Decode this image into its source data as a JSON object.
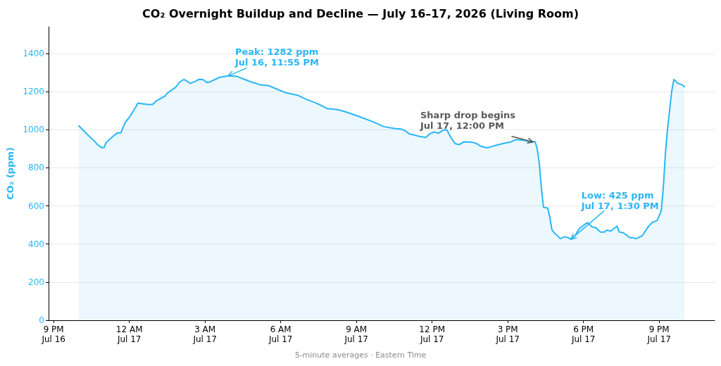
{
  "chart_data": {
    "type": "area",
    "title": "CO₂ Overnight Buildup and Decline — July 16–17, 2026 (Living Room)",
    "ylabel": "CO₂ (ppm)",
    "x": [
      "2026-07-16T22:00",
      "2026-07-16T22:20",
      "2026-07-16T22:35",
      "2026-07-16T22:45",
      "2026-07-16T22:55",
      "2026-07-16T23:00",
      "2026-07-16T23:05",
      "2026-07-16T23:20",
      "2026-07-16T23:30",
      "2026-07-16T23:40",
      "2026-07-16T23:50",
      "2026-07-17T00:00",
      "2026-07-17T00:15",
      "2026-07-17T00:20",
      "2026-07-17T00:45",
      "2026-07-17T00:55",
      "2026-07-17T01:05",
      "2026-07-17T01:25",
      "2026-07-17T01:30",
      "2026-07-17T01:40",
      "2026-07-17T01:50",
      "2026-07-17T02:00",
      "2026-07-17T02:10",
      "2026-07-17T02:25",
      "2026-07-17T02:40",
      "2026-07-17T02:45",
      "2026-07-17T02:55",
      "2026-07-17T03:05",
      "2026-07-17T03:10",
      "2026-07-17T03:35",
      "2026-07-17T03:55",
      "2026-07-17T04:15",
      "2026-07-17T04:35",
      "2026-07-17T04:50",
      "2026-07-17T05:05",
      "2026-07-17T05:10",
      "2026-07-17T05:30",
      "2026-07-17T05:50",
      "2026-07-17T06:10",
      "2026-07-17T06:40",
      "2026-07-17T07:00",
      "2026-07-17T07:25",
      "2026-07-17T07:40",
      "2026-07-17T07:50",
      "2026-07-17T08:15",
      "2026-07-17T08:35",
      "2026-07-17T09:05",
      "2026-07-17T09:40",
      "2026-07-17T10:05",
      "2026-07-17T10:30",
      "2026-07-17T10:45",
      "2026-07-17T10:55",
      "2026-07-17T11:05",
      "2026-07-17T11:30",
      "2026-07-17T11:45",
      "2026-07-17T11:55",
      "2026-07-17T12:05",
      "2026-07-17T12:15",
      "2026-07-17T12:25",
      "2026-07-17T12:35",
      "2026-07-17T12:45",
      "2026-07-17T12:55",
      "2026-07-17T13:05",
      "2026-07-17T13:15",
      "2026-07-17T13:35",
      "2026-07-17T13:45",
      "2026-07-17T13:55",
      "2026-07-17T14:10",
      "2026-07-17T14:20",
      "2026-07-17T14:30",
      "2026-07-17T14:50",
      "2026-07-17T15:05",
      "2026-07-17T15:20",
      "2026-07-17T15:40",
      "2026-07-17T15:55",
      "2026-07-17T16:05",
      "2026-07-17T16:10",
      "2026-07-17T16:15",
      "2026-07-17T16:20",
      "2026-07-17T16:25",
      "2026-07-17T16:35",
      "2026-07-17T16:40",
      "2026-07-17T16:45",
      "2026-07-17T16:50",
      "2026-07-17T16:55",
      "2026-07-17T17:05",
      "2026-07-17T17:15",
      "2026-07-17T17:25",
      "2026-07-17T17:30",
      "2026-07-17T17:40",
      "2026-07-17T17:50",
      "2026-07-17T18:05",
      "2026-07-17T18:10",
      "2026-07-17T18:20",
      "2026-07-17T18:30",
      "2026-07-17T18:40",
      "2026-07-17T18:50",
      "2026-07-17T18:55",
      "2026-07-17T19:05",
      "2026-07-17T19:20",
      "2026-07-17T19:25",
      "2026-07-17T19:35",
      "2026-07-17T19:50",
      "2026-07-17T20:00",
      "2026-07-17T20:05",
      "2026-07-17T20:15",
      "2026-07-17T20:20",
      "2026-07-17T20:35",
      "2026-07-17T20:45",
      "2026-07-17T20:55",
      "2026-07-17T21:05",
      "2026-07-17T21:10",
      "2026-07-17T21:15",
      "2026-07-17T21:20",
      "2026-07-17T21:30",
      "2026-07-17T21:35",
      "2026-07-17T21:45",
      "2026-07-17T21:55",
      "2026-07-17T22:00"
    ],
    "series": [
      {
        "color": "#29b6f6",
        "values": [
          1020,
          975,
          944,
          920,
          905,
          907,
          932,
          963,
          981,
          984,
          1037,
          1065,
          1117,
          1139,
          1132,
          1132,
          1152,
          1177,
          1191,
          1207,
          1222,
          1250,
          1264,
          1243,
          1256,
          1264,
          1263,
          1247,
          1249,
          1275,
          1282,
          1280,
          1263,
          1250,
          1241,
          1235,
          1232,
          1214,
          1195,
          1181,
          1160,
          1139,
          1123,
          1111,
          1105,
          1093,
          1070,
          1041,
          1016,
          1006,
          1004,
          996,
          979,
          965,
          959,
          979,
          988,
          981,
          996,
          1000,
          957,
          926,
          922,
          936,
          934,
          928,
          914,
          905,
          910,
          917,
          928,
          934,
          948,
          944,
          934,
          938,
          900,
          821,
          690,
          593,
          589,
          540,
          475,
          460,
          450,
          428,
          438,
          432,
          425,
          444,
          481,
          506,
          512,
          490,
          485,
          463,
          463,
          473,
          468,
          494,
          463,
          459,
          434,
          432,
          428,
          438,
          444,
          494,
          515,
          522,
          574,
          700,
          880,
          1006,
          1204,
          1263,
          1243,
          1235,
          1225
        ]
      }
    ],
    "xlim": [
      "2026-07-16T20:48",
      "2026-07-17T23:12"
    ],
    "xticks": [
      {
        "value": "2026-07-16T21:00",
        "label": "9 PM\nJul 16"
      },
      {
        "value": "2026-07-17T00:00",
        "label": "12 AM\nJul 17"
      },
      {
        "value": "2026-07-17T03:00",
        "label": "3 AM\nJul 17"
      },
      {
        "value": "2026-07-17T06:00",
        "label": "6 AM\nJul 17"
      },
      {
        "value": "2026-07-17T09:00",
        "label": "9 AM\nJul 17"
      },
      {
        "value": "2026-07-17T12:00",
        "label": "12 PM\nJul 17"
      },
      {
        "value": "2026-07-17T15:00",
        "label": "3 PM\nJul 17"
      },
      {
        "value": "2026-07-17T18:00",
        "label": "6 PM\nJul 17"
      },
      {
        "value": "2026-07-17T21:00",
        "label": "9 PM\nJul 17"
      }
    ],
    "ylim": [
      0,
      1540
    ],
    "yticks": [
      0,
      200,
      400,
      600,
      800,
      1000,
      1200,
      1400
    ],
    "grid": "y",
    "annotations": [
      {
        "text": "Peak: 1282 ppm\nJul 16, 11:55 PM",
        "x": "2026-07-17T03:55",
        "y": 1282
      },
      {
        "text": "Sharp drop begins\nJul 17, 12:00 PM",
        "x": "2026-07-17T16:00",
        "y": 935
      },
      {
        "text": "Low: 425 ppm\nJul 17, 1:30 PM",
        "x": "2026-07-17T17:30",
        "y": 425
      },
      "5-minute averages · Eastern Time"
    ]
  }
}
